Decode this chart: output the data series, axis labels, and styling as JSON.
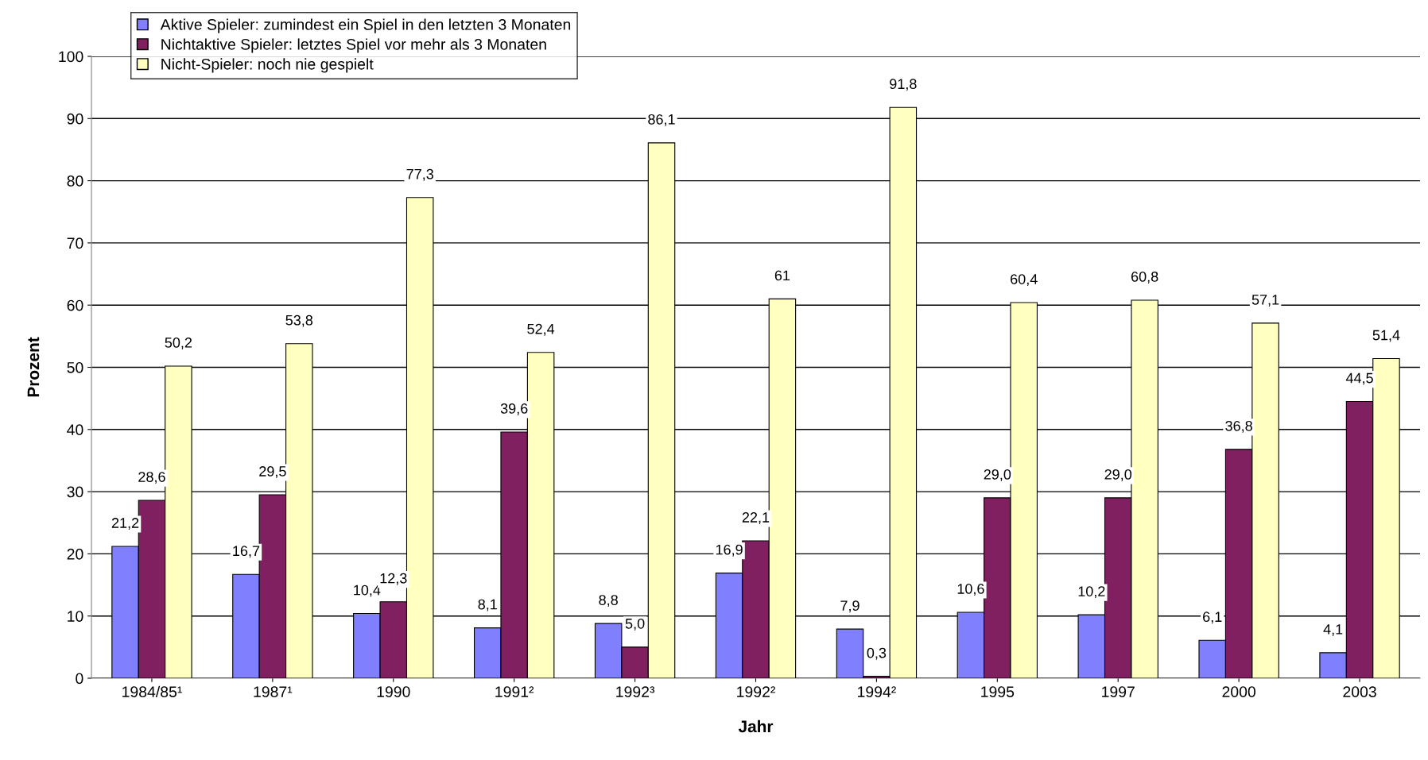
{
  "chart_data": {
    "type": "bar",
    "xlabel": "Jahr",
    "ylabel": "Prozent",
    "categories": [
      "1984/85¹",
      "1987¹",
      "1990",
      "1991²",
      "1992³",
      "1992²",
      "1994²",
      "1995",
      "1997",
      "2000",
      "2003"
    ],
    "series": [
      {
        "name": "Aktive Spieler: zumindest ein Spiel in den letzten 3 Monaten",
        "color": "#8080ff",
        "values": [
          21.2,
          16.7,
          10.4,
          8.1,
          8.8,
          16.9,
          7.9,
          10.6,
          10.2,
          6.1,
          4.1
        ],
        "value_labels": [
          "21,2",
          "16,7",
          "10,4",
          "8,1",
          "8,8",
          "16,9",
          "7,9",
          "10,6",
          "10,2",
          "6,1",
          "4,1"
        ]
      },
      {
        "name": "Nichtaktive Spieler: letztes Spiel vor mehr als 3 Monaten",
        "color": "#802060",
        "values": [
          28.6,
          29.5,
          12.3,
          39.6,
          5.0,
          22.1,
          0.3,
          29.0,
          29.0,
          36.8,
          44.5
        ],
        "value_labels": [
          "28,6",
          "29,5",
          "12,3",
          "39,6",
          "5,0",
          "22,1",
          "0,3",
          "29,0",
          "29,0",
          "36,8",
          "44,5"
        ]
      },
      {
        "name": "Nicht-Spieler: noch nie gespielt",
        "color": "#ffffc0",
        "values": [
          50.2,
          53.8,
          77.3,
          52.4,
          86.1,
          61,
          91.8,
          60.4,
          60.8,
          57.1,
          51.4
        ],
        "value_labels": [
          "50,2",
          "53,8",
          "77,3",
          "52,4",
          "86,1",
          "61",
          "91,8",
          "60,4",
          "60,8",
          "57,1",
          "51,4"
        ]
      }
    ],
    "ylim": [
      0,
      100
    ],
    "yticks": [
      0,
      10,
      20,
      30,
      40,
      50,
      60,
      70,
      80,
      90,
      100
    ],
    "grid": "y",
    "legend": "top left"
  }
}
